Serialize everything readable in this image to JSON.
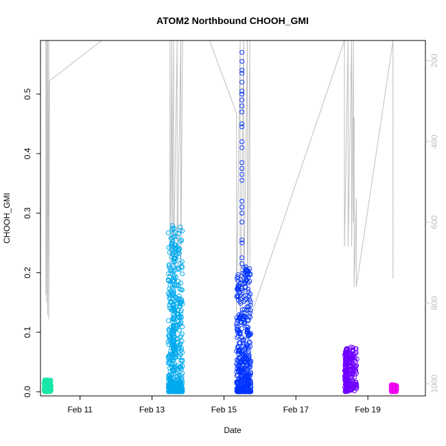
{
  "chart_data": {
    "type": "scatter",
    "title": "ATOM2 Northbound CHOOH_GMI",
    "xlabel": "Date",
    "ylabel": "CHOOH_GMI",
    "x_range_days": [
      9.9,
      20.6
    ],
    "ylim": [
      -0.007,
      0.59
    ],
    "x_ticks": [
      {
        "value": 11,
        "label": "Feb 11"
      },
      {
        "value": 13,
        "label": "Feb 13"
      },
      {
        "value": 15,
        "label": "Feb 15"
      },
      {
        "value": 17,
        "label": "Feb 17"
      },
      {
        "value": 19,
        "label": "Feb 19"
      }
    ],
    "y_ticks": [
      {
        "value": 0.0,
        "label": "0.0"
      },
      {
        "value": 0.1,
        "label": "0.1"
      },
      {
        "value": 0.2,
        "label": "0.2"
      },
      {
        "value": 0.3,
        "label": "0.3"
      },
      {
        "value": 0.4,
        "label": "0.4"
      },
      {
        "value": 0.5,
        "label": "0.5"
      }
    ],
    "secondary_axis": {
      "scale": "pressure",
      "range": [
        1030,
        150
      ],
      "reversed": true,
      "ticks": [
        {
          "value": 200,
          "label": "200"
        },
        {
          "value": 400,
          "label": "400"
        },
        {
          "value": 600,
          "label": "600"
        },
        {
          "value": 800,
          "label": "800"
        },
        {
          "value": 1000,
          "label": "1000"
        }
      ],
      "color": "#bdbdbd"
    },
    "grid": false,
    "marker": "open-circle",
    "pressure_trace": [
      {
        "x": 10.05,
        "p": 150
      },
      {
        "x": 10.05,
        "p": 780
      },
      {
        "x": 10.07,
        "p": 150
      },
      {
        "x": 10.07,
        "p": 800
      },
      {
        "x": 10.1,
        "p": 150
      },
      {
        "x": 10.1,
        "p": 830
      },
      {
        "x": 10.13,
        "p": 150
      },
      {
        "x": 10.13,
        "p": 840
      },
      {
        "x": 10.15,
        "p": 250
      },
      {
        "x": 11.6,
        "p": 150
      },
      {
        "x": 13.5,
        "p": 150
      },
      {
        "x": 13.5,
        "p": 720
      },
      {
        "x": 13.55,
        "p": 150
      },
      {
        "x": 13.55,
        "p": 690
      },
      {
        "x": 13.6,
        "p": 150
      },
      {
        "x": 13.6,
        "p": 700
      },
      {
        "x": 13.7,
        "p": 150
      },
      {
        "x": 13.7,
        "p": 710
      },
      {
        "x": 13.8,
        "p": 150
      },
      {
        "x": 13.8,
        "p": 720
      },
      {
        "x": 13.85,
        "p": 150
      },
      {
        "x": 14.6,
        "p": 150
      },
      {
        "x": 15.35,
        "p": 330
      },
      {
        "x": 15.35,
        "p": 830
      },
      {
        "x": 15.45,
        "p": 150
      },
      {
        "x": 15.45,
        "p": 850
      },
      {
        "x": 15.55,
        "p": 150
      },
      {
        "x": 15.55,
        "p": 800
      },
      {
        "x": 15.65,
        "p": 150
      },
      {
        "x": 15.65,
        "p": 820
      },
      {
        "x": 15.72,
        "p": 150
      },
      {
        "x": 15.72,
        "p": 840
      },
      {
        "x": 18.35,
        "p": 150
      },
      {
        "x": 18.35,
        "p": 660
      },
      {
        "x": 18.45,
        "p": 150
      },
      {
        "x": 18.45,
        "p": 660
      },
      {
        "x": 18.55,
        "p": 150
      },
      {
        "x": 18.55,
        "p": 660
      },
      {
        "x": 18.6,
        "p": 150
      },
      {
        "x": 18.6,
        "p": 600
      },
      {
        "x": 18.62,
        "p": 340
      },
      {
        "x": 18.62,
        "p": 760
      },
      {
        "x": 18.68,
        "p": 540
      },
      {
        "x": 18.68,
        "p": 760
      },
      {
        "x": 19.7,
        "p": 150
      },
      {
        "x": 19.7,
        "p": 740
      }
    ],
    "series": [
      {
        "color": "#19e6a8",
        "x_range": [
          10.0,
          10.2
        ],
        "y_range": [
          0.0,
          0.02
        ]
      },
      {
        "color": "#00aaee",
        "x_range": [
          13.45,
          13.85
        ],
        "y_range": [
          0.0,
          0.28
        ],
        "peak": {
          "x": 13.6,
          "y": 0.278
        }
      },
      {
        "color": "#0033ff",
        "x_range": [
          15.35,
          15.75
        ],
        "y_range": [
          0.0,
          0.21
        ],
        "outliers": [
          {
            "x": 15.5,
            "y": 0.57
          },
          {
            "x": 15.5,
            "y": 0.555
          },
          {
            "x": 15.5,
            "y": 0.54
          },
          {
            "x": 15.5,
            "y": 0.535
          },
          {
            "x": 15.5,
            "y": 0.52
          },
          {
            "x": 15.5,
            "y": 0.505
          },
          {
            "x": 15.5,
            "y": 0.5
          },
          {
            "x": 15.5,
            "y": 0.49
          },
          {
            "x": 15.5,
            "y": 0.48
          },
          {
            "x": 15.5,
            "y": 0.47
          },
          {
            "x": 15.5,
            "y": 0.45
          },
          {
            "x": 15.5,
            "y": 0.445
          },
          {
            "x": 15.5,
            "y": 0.42
          },
          {
            "x": 15.5,
            "y": 0.41
          },
          {
            "x": 15.5,
            "y": 0.385
          },
          {
            "x": 15.5,
            "y": 0.375
          },
          {
            "x": 15.5,
            "y": 0.365
          },
          {
            "x": 15.5,
            "y": 0.355
          },
          {
            "x": 15.5,
            "y": 0.32
          },
          {
            "x": 15.5,
            "y": 0.31
          },
          {
            "x": 15.5,
            "y": 0.3
          },
          {
            "x": 15.5,
            "y": 0.285
          },
          {
            "x": 15.5,
            "y": 0.255
          },
          {
            "x": 15.5,
            "y": 0.25
          },
          {
            "x": 15.5,
            "y": 0.225
          },
          {
            "x": 15.5,
            "y": 0.215
          }
        ]
      },
      {
        "color": "#6e00ff",
        "x_range": [
          18.35,
          18.7
        ],
        "y_range": [
          0.0,
          0.075
        ],
        "peak": {
          "x": 18.4,
          "y": 0.074
        }
      },
      {
        "color": "#ee00ee",
        "x_range": [
          19.65,
          19.8
        ],
        "y_range": [
          0.0,
          0.012
        ]
      }
    ]
  }
}
